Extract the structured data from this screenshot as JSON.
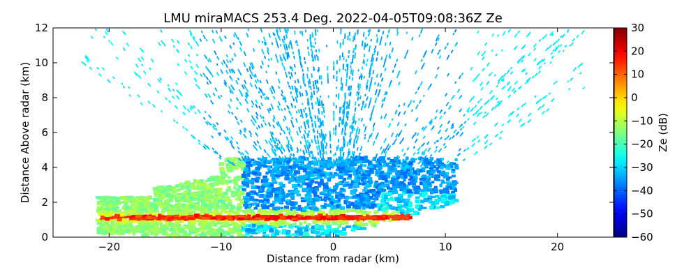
{
  "chart_data": {
    "type": "heatmap",
    "title": "LMU miraMACS 253.4 Deg. 2022-04-05T09:08:36Z  Ze",
    "xlabel": "Distance from radar (km)",
    "ylabel": "Distance Above radar  (km)",
    "xlim": [
      -25,
      25
    ],
    "ylim": [
      0,
      12
    ],
    "xticks": [
      -20,
      -10,
      0,
      10,
      20
    ],
    "yticks": [
      0,
      2,
      4,
      6,
      8,
      10,
      12
    ],
    "grid": false,
    "colorbar": {
      "label": "Ze (dB)",
      "colormap": "jet",
      "range": [
        -60,
        30
      ],
      "ticks": [
        -60,
        -50,
        -40,
        -30,
        -20,
        -10,
        0,
        10,
        20,
        30
      ]
    },
    "features": [
      {
        "description": "elevated reflective layer",
        "x_range": [
          -21,
          7
        ],
        "height_km": 1.1,
        "ze_dB": 15
      },
      {
        "description": "dense low-level echo region",
        "x_range": [
          -20,
          10
        ],
        "height_range_km": [
          0,
          4.5
        ],
        "ze_range_dB": [
          -40,
          -15
        ]
      },
      {
        "description": "sparse upper noise speckle",
        "x_range": [
          -22,
          22
        ],
        "height_range_km": [
          4.5,
          12
        ],
        "ze_range_dB": [
          -38,
          -28
        ]
      }
    ]
  }
}
